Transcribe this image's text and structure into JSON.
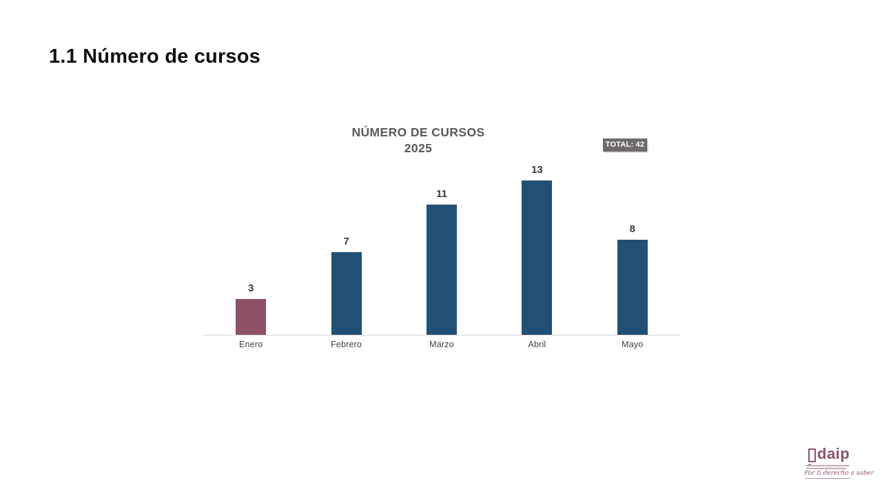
{
  "slide": {
    "title": "1.1 Número de cursos"
  },
  "chart": {
    "title_line1": "NÚMERO DE CURSOS",
    "title_line2": "2025",
    "total_badge": "TOTAL: 42"
  },
  "chart_data": {
    "type": "bar",
    "title": "NÚMERO DE CURSOS 2025",
    "categories": [
      "Enero",
      "Febrero",
      "Marzo",
      "Abril",
      "Mayo"
    ],
    "values": [
      3,
      7,
      11,
      13,
      8
    ],
    "total": 42,
    "xlabel": "",
    "ylabel": "",
    "ylim": [
      0,
      14
    ],
    "grid": false,
    "legend": false,
    "value_labels": true,
    "bar_colors": [
      "#8E5067",
      "#215077",
      "#215077",
      "#215077",
      "#215077"
    ]
  },
  "logo": {
    "wordmark": "daip",
    "tagline": "Por ti derecho a saber",
    "brand_color": "#8E5067"
  },
  "colors": {
    "bar_blue": "#215077",
    "bar_maroon": "#8E5067",
    "badge_bg": "#6E6A6A",
    "chart_title_gray": "#595959",
    "axis_line": "#D9D9D9"
  }
}
